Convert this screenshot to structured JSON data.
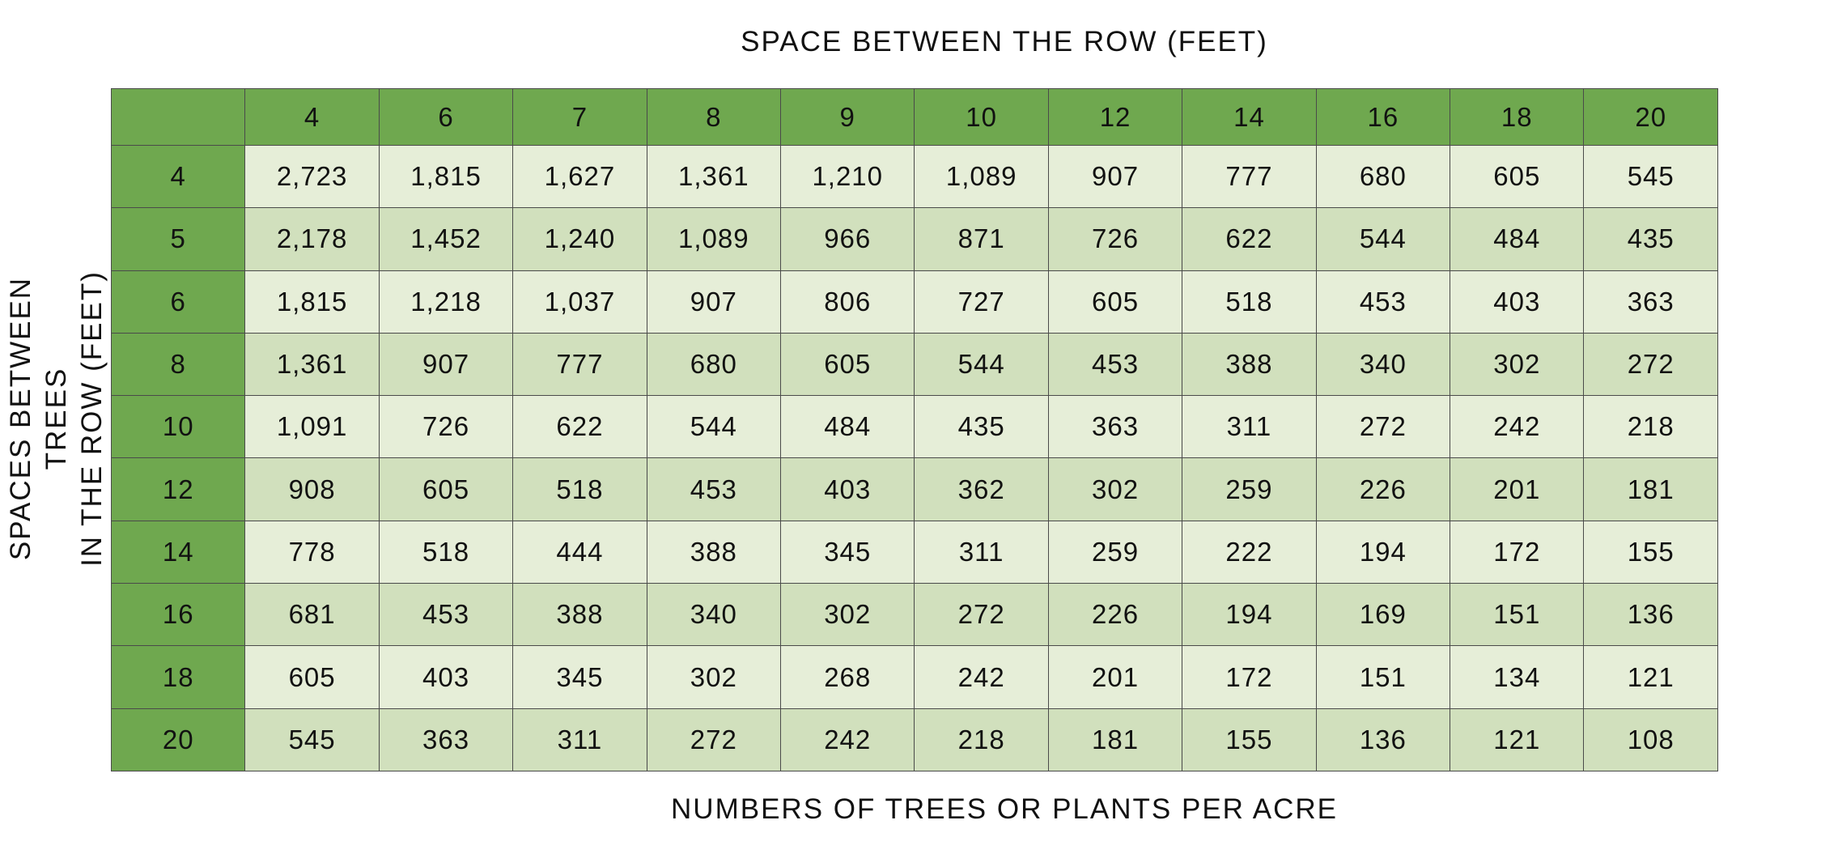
{
  "header": {
    "column_axis_title": "SPACE BETWEEN THE ROW (FEET)",
    "row_axis_title_line1": "SPACES BETWEEN TREES",
    "row_axis_title_line2": "IN THE ROW (FEET)",
    "footer_title": "NUMBERS OF TREES OR PLANTS PER ACRE"
  },
  "colors": {
    "header_green": "#6fa84f",
    "cell_light": "#e6eed8",
    "cell_dark": "#d1e0bd",
    "border": "#4a4a4a"
  },
  "chart_data": {
    "type": "table",
    "xlabel": "SPACE BETWEEN THE ROW (FEET)",
    "ylabel": "SPACES BETWEEN TREES IN THE ROW (FEET)",
    "columns": [
      "4",
      "6",
      "7",
      "8",
      "9",
      "10",
      "12",
      "14",
      "16",
      "18",
      "20"
    ],
    "rows": [
      {
        "label": "4",
        "values": [
          "2,723",
          "1,815",
          "1,627",
          "1,361",
          "1,210",
          "1,089",
          "907",
          "777",
          "680",
          "605",
          "545"
        ]
      },
      {
        "label": "5",
        "values": [
          "2,178",
          "1,452",
          "1,240",
          "1,089",
          "966",
          "871",
          "726",
          "622",
          "544",
          "484",
          "435"
        ]
      },
      {
        "label": "6",
        "values": [
          "1,815",
          "1,218",
          "1,037",
          "907",
          "806",
          "727",
          "605",
          "518",
          "453",
          "403",
          "363"
        ]
      },
      {
        "label": "8",
        "values": [
          "1,361",
          "907",
          "777",
          "680",
          "605",
          "544",
          "453",
          "388",
          "340",
          "302",
          "272"
        ]
      },
      {
        "label": "10",
        "values": [
          "1,091",
          "726",
          "622",
          "544",
          "484",
          "435",
          "363",
          "311",
          "272",
          "242",
          "218"
        ]
      },
      {
        "label": "12",
        "values": [
          "908",
          "605",
          "518",
          "453",
          "403",
          "362",
          "302",
          "259",
          "226",
          "201",
          "181"
        ]
      },
      {
        "label": "14",
        "values": [
          "778",
          "518",
          "444",
          "388",
          "345",
          "311",
          "259",
          "222",
          "194",
          "172",
          "155"
        ]
      },
      {
        "label": "16",
        "values": [
          "681",
          "453",
          "388",
          "340",
          "302",
          "272",
          "226",
          "194",
          "169",
          "151",
          "136"
        ]
      },
      {
        "label": "18",
        "values": [
          "605",
          "403",
          "345",
          "302",
          "268",
          "242",
          "201",
          "172",
          "151",
          "134",
          "121"
        ]
      },
      {
        "label": "20",
        "values": [
          "545",
          "363",
          "311",
          "272",
          "242",
          "218",
          "181",
          "155",
          "136",
          "121",
          "108"
        ]
      }
    ]
  }
}
